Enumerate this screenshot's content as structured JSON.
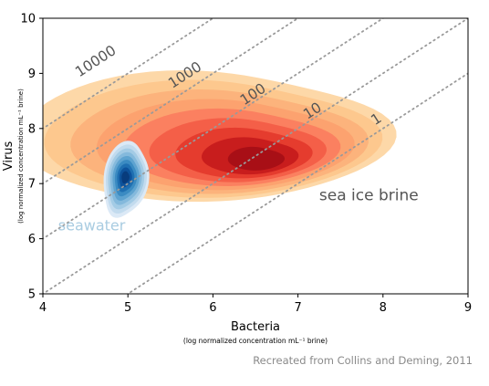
{
  "chart_data": {
    "type": "contour",
    "x_label": "Bacteria",
    "x_sublabel": "(log normalized concentration mL⁻¹ brine)",
    "y_label": "Virus",
    "y_sublabel": "(log normalized concentration mL⁻¹ brine)",
    "xlim": [
      4,
      9
    ],
    "ylim": [
      5,
      10
    ],
    "x_ticks": [
      4,
      5,
      6,
      7,
      8,
      9
    ],
    "y_ticks": [
      5,
      6,
      7,
      8,
      9,
      10
    ],
    "grid": false,
    "ratio_lines": [
      {
        "label": "10000",
        "log_ratio": 4,
        "label_x": 4.65,
        "label_y": 9.15
      },
      {
        "label": "1000",
        "log_ratio": 3,
        "label_x": 5.7,
        "label_y": 8.9
      },
      {
        "label": "100",
        "log_ratio": 2,
        "label_x": 6.5,
        "label_y": 8.55
      },
      {
        "label": "10",
        "log_ratio": 1,
        "label_x": 7.2,
        "label_y": 8.25
      },
      {
        "label": "1",
        "log_ratio": 0,
        "label_x": 7.95,
        "label_y": 8.1
      }
    ],
    "series": [
      {
        "name": "sea ice brine",
        "colors": [
          "#fdd8a8",
          "#fdc88e",
          "#fcb37c",
          "#fca26f",
          "#fb8060",
          "#f45f48",
          "#e53c2e",
          "#c81d1d",
          "#a80f16"
        ],
        "centers": [
          [
            5.0,
            8.25
          ],
          [
            6.5,
            7.45
          ],
          [
            6.0,
            8.25
          ]
        ],
        "label_x": 7.25,
        "label_y": 6.7
      },
      {
        "name": "seawater",
        "colors": [
          "#dbe9f6",
          "#c2dbee",
          "#a3cbe5",
          "#84b9dc",
          "#5ea3d0",
          "#3b8bc2",
          "#1f6fb1",
          "#0d529b",
          "#083c7d"
        ],
        "center": [
          4.97,
          7.08
        ],
        "label_x": 4.18,
        "label_y": 6.15
      }
    ],
    "annotations": {
      "brine_label": "sea ice brine",
      "seawater_label": "seawater"
    }
  },
  "credit": "Recreated from Collins and Deming, 2011"
}
